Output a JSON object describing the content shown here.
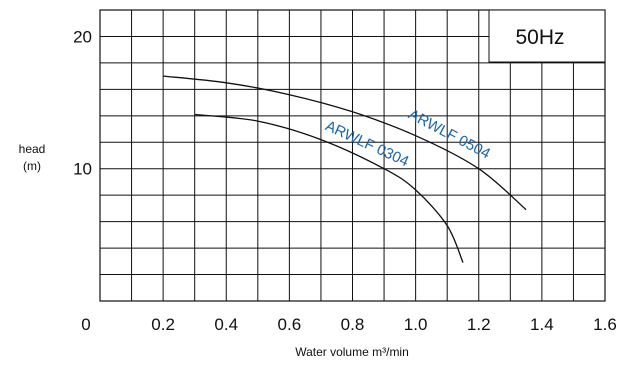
{
  "chart_data": {
    "type": "line",
    "title": "",
    "annotation": "50Hz",
    "xlabel": "Water volume m³/min",
    "ylabel": "head",
    "ylabel_unit": "(m)",
    "xlim": [
      0,
      1.6
    ],
    "ylim": [
      0,
      22
    ],
    "grid": true,
    "x_ticks": [
      {
        "value": 0,
        "label": "0"
      },
      {
        "value": 0.2,
        "label": "0.2"
      },
      {
        "value": 0.4,
        "label": "0.4"
      },
      {
        "value": 0.6,
        "label": "0.6"
      },
      {
        "value": 0.8,
        "label": "0.8"
      },
      {
        "value": 1.0,
        "label": "1.0"
      },
      {
        "value": 1.2,
        "label": "1.2"
      },
      {
        "value": 1.4,
        "label": "1.4"
      },
      {
        "value": 1.6,
        "label": "1.6"
      }
    ],
    "y_ticks": [
      {
        "value": 10,
        "label": "10"
      },
      {
        "value": 20,
        "label": "20"
      }
    ],
    "series": [
      {
        "name": "ARWLF 0504",
        "x": [
          0.2,
          0.4,
          0.6,
          0.8,
          1.0,
          1.2,
          1.35
        ],
        "y": [
          17.0,
          16.5,
          15.6,
          14.3,
          12.5,
          10.0,
          6.9
        ]
      },
      {
        "name": "ARWLF 0304",
        "x": [
          0.3,
          0.5,
          0.7,
          0.9,
          1.0,
          1.1,
          1.15
        ],
        "y": [
          14.1,
          13.6,
          12.2,
          10.0,
          8.4,
          5.7,
          2.9
        ]
      }
    ],
    "series_label_color": "#1a64b0",
    "line_color": "#111111"
  }
}
